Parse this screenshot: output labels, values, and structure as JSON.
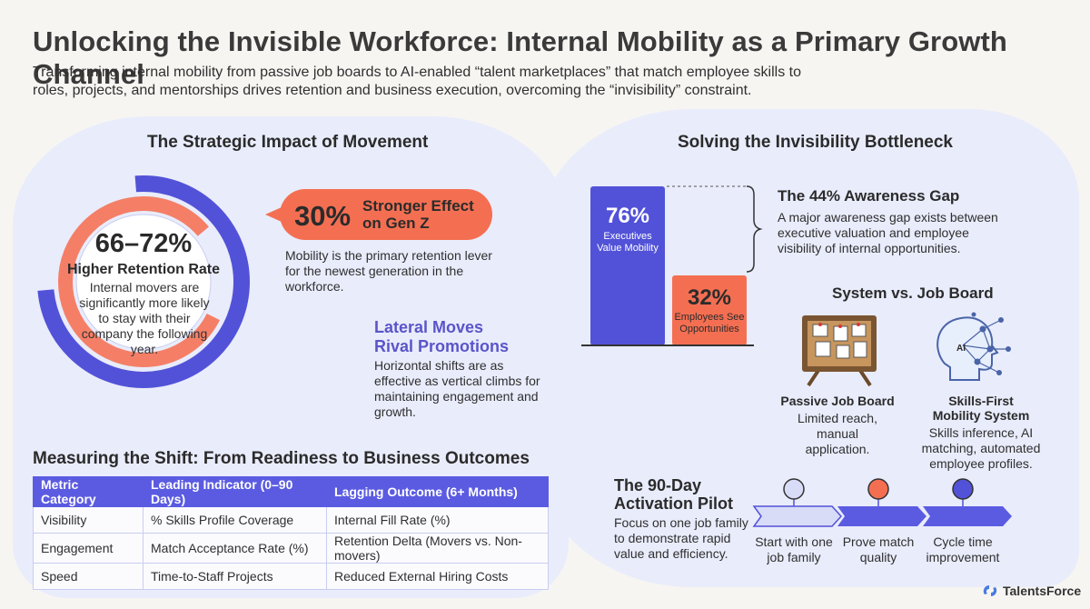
{
  "header": {
    "title": "Unlocking the Invisible Workforce: Internal Mobility as a Primary Growth Channel",
    "subtitle": "Transforming internal mobility from passive job boards to AI-enabled “talent marketplaces” that match employee skills to roles, projects, and mentorships drives retention and business execution, overcoming the “invisibility” constraint."
  },
  "impact": {
    "title": "The Strategic Impact of Movement",
    "ring": {
      "value": "66–72%",
      "label": "Higher Retention Rate",
      "description": "Internal movers are significantly more likely to stay with their company the following year."
    },
    "callout": {
      "number": "30%",
      "label_line1": "Stronger Effect",
      "label_line2": "on Gen Z",
      "description": "Mobility is the primary retention lever for the newest generation in the workforce."
    },
    "lateral": {
      "title_line1": "Lateral Moves",
      "title_line2": "Rival Promotions",
      "description": "Horizontal shifts are as effective as vertical climbs for maintaining engagement and growth."
    }
  },
  "measuring": {
    "title": "Measuring the Shift: From Readiness to Business Outcomes",
    "columns": [
      "Metric Category",
      "Leading Indicator (0–90 Days)",
      "Lagging Outcome (6+ Months)"
    ],
    "rows": [
      [
        "Visibility",
        "% Skills Profile Coverage",
        "Internal Fill Rate (%)"
      ],
      [
        "Engagement",
        "Match Acceptance Rate (%)",
        "Retention Delta (Movers vs. Non-movers)"
      ],
      [
        "Speed",
        "Time-to-Staff Projects",
        "Reduced External Hiring Costs"
      ]
    ]
  },
  "bottleneck": {
    "title": "Solving the Invisibility Bottleneck",
    "bar_exec": {
      "value": "76%",
      "label": "Executives Value Mobility",
      "percent": 76
    },
    "bar_emp": {
      "value": "32%",
      "label": "Employees See Opportunities",
      "percent": 32
    },
    "gap": {
      "title": "The 44% Awareness Gap",
      "description": "A major awareness gap exists between executive valuation and employee visibility of internal opportunities."
    }
  },
  "comparison": {
    "title": "System vs. Job Board",
    "job_board": {
      "icon": "corkboard-icon",
      "title": "Passive Job Board",
      "description": "Limited reach, manual application."
    },
    "system": {
      "icon": "ai-head-icon",
      "icon_label": "AI",
      "title_line1": "Skills-First",
      "title_line2": "Mobility System",
      "description": "Skills inference, AI matching, automated employee profiles."
    }
  },
  "pilot": {
    "title_line1": "The 90-Day",
    "title_line2": "Activation Pilot",
    "description": "Focus on one job family to demonstrate rapid value and efficiency.",
    "steps": [
      {
        "label": "Start with one job family",
        "color": "#d9dcf7"
      },
      {
        "label": "Prove match quality",
        "color": "#f46f52"
      },
      {
        "label": "Cycle time improvement",
        "color": "#5252d8"
      }
    ]
  },
  "brand": {
    "name": "TalentsForce",
    "icon": "talentsforce-logo-icon"
  },
  "colors": {
    "accent_blue": "#5252d8",
    "accent_orange": "#f46f52",
    "panel": "#e9ecfb"
  }
}
